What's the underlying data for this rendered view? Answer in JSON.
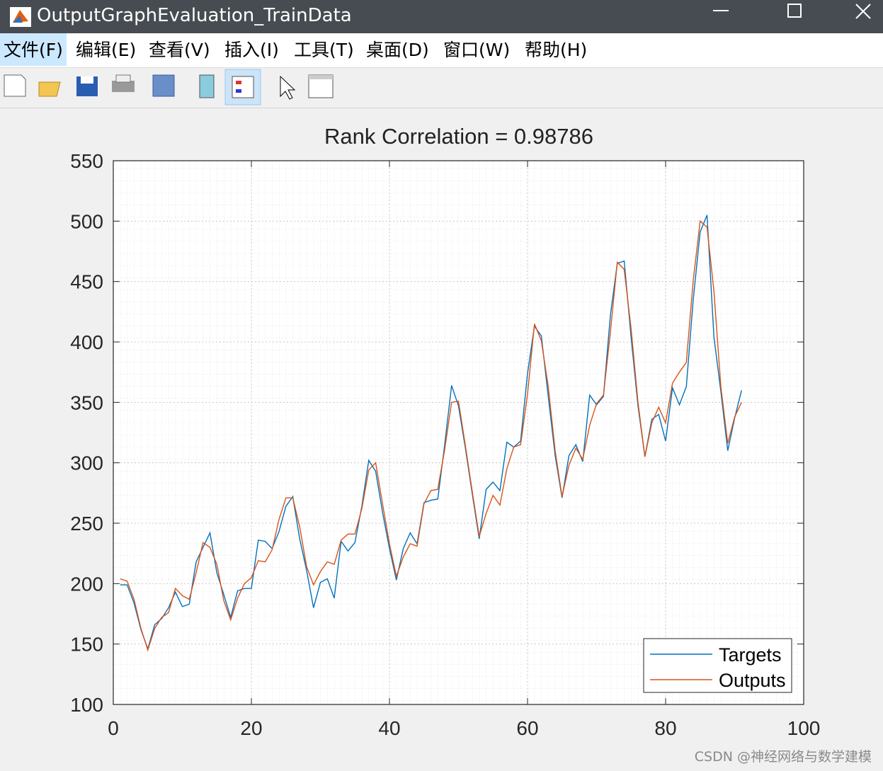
{
  "window": {
    "title": "OutputGraphEvaluation_TrainData"
  },
  "menu": [
    "文件(F)",
    "编辑(E)",
    "查看(V)",
    "插入(I)",
    "工具(T)",
    "桌面(D)",
    "窗口(W)",
    "帮助(H)"
  ],
  "watermark": "CSDN @神经网络与数学建模",
  "chart_data": {
    "type": "line",
    "title": "Rank Correlation = 0.98786",
    "x": [
      1,
      2,
      3,
      4,
      5,
      6,
      7,
      8,
      9,
      10,
      11,
      12,
      13,
      14,
      15,
      16,
      17,
      18,
      19,
      20,
      21,
      22,
      23,
      24,
      25,
      26,
      27,
      28,
      29,
      30,
      31,
      32,
      33,
      34,
      35,
      36,
      37,
      38,
      39,
      40,
      41,
      42,
      43,
      44,
      45,
      46,
      47,
      48,
      49,
      50,
      51,
      52,
      53,
      54,
      55,
      56,
      57,
      58,
      59,
      60,
      61,
      62,
      63,
      64,
      65,
      66,
      67,
      68,
      69,
      70,
      71,
      72,
      73,
      74,
      75,
      76,
      77,
      78,
      79,
      80,
      81,
      82,
      83,
      84,
      85,
      86,
      87,
      88,
      89,
      90,
      91
    ],
    "series": [
      {
        "name": "Targets",
        "color": "#0072bd",
        "values": [
          199,
          199,
          184,
          162,
          146,
          166,
          171,
          180,
          193,
          181,
          183,
          218,
          230,
          242,
          209,
          191,
          172,
          194,
          196,
          196,
          236,
          235,
          229,
          243,
          264,
          272,
          237,
          211,
          180,
          201,
          204,
          188,
          235,
          227,
          234,
          264,
          302,
          293,
          259,
          229,
          203,
          229,
          242,
          233,
          267,
          269,
          270,
          315,
          364,
          347,
          312,
          274,
          237,
          278,
          284,
          277,
          317,
          313,
          318,
          374,
          413,
          405,
          355,
          306,
          271,
          306,
          315,
          301,
          356,
          348,
          355,
          422,
          465,
          467,
          404,
          347,
          305,
          336,
          340,
          318,
          362,
          348,
          363,
          435,
          491,
          505,
          404,
          359,
          310,
          337,
          360
        ]
      },
      {
        "name": "Outputs",
        "color": "#d95319",
        "values": [
          204,
          202,
          187,
          163,
          145,
          163,
          172,
          176,
          196,
          190,
          187,
          209,
          234,
          230,
          216,
          186,
          170,
          188,
          200,
          205,
          219,
          218,
          228,
          253,
          271,
          271,
          247,
          214,
          199,
          210,
          218,
          216,
          236,
          241,
          241,
          262,
          294,
          300,
          266,
          233,
          206,
          222,
          233,
          231,
          266,
          277,
          278,
          311,
          350,
          351,
          314,
          276,
          239,
          258,
          273,
          265,
          295,
          313,
          315,
          357,
          415,
          401,
          363,
          310,
          272,
          298,
          312,
          303,
          331,
          349,
          356,
          408,
          466,
          460,
          411,
          350,
          305,
          333,
          346,
          333,
          366,
          375,
          383,
          451,
          500,
          495,
          442,
          363,
          316,
          338,
          350
        ]
      }
    ],
    "xlim": [
      0,
      100
    ],
    "xticks": [
      0,
      20,
      40,
      60,
      80,
      100
    ],
    "ylim": [
      100,
      550
    ],
    "yticks": [
      100,
      150,
      200,
      250,
      300,
      350,
      400,
      450,
      500,
      550
    ],
    "grid": true,
    "legend": "southeast"
  }
}
